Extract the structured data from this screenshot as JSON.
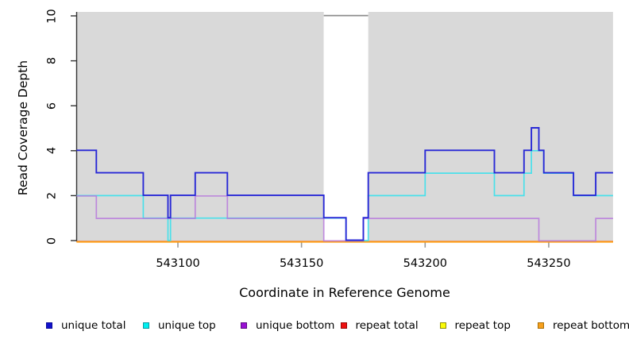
{
  "chart_data": {
    "type": "line",
    "subtype": "step-coverage",
    "title": "",
    "x_axis": {
      "label": "Coordinate in Reference Genome",
      "range": [
        543059,
        543276
      ],
      "ticks": [
        {
          "coord": 543100,
          "label": "543100"
        },
        {
          "coord": 543150,
          "label": "543150"
        },
        {
          "coord": 543200,
          "label": "543200"
        },
        {
          "coord": 543250,
          "label": "543250"
        }
      ]
    },
    "y_axis": {
      "label": "Read Coverage Depth",
      "range": [
        0,
        10
      ],
      "ticks": [
        0,
        2,
        4,
        6,
        8,
        10
      ]
    },
    "background_regions": [
      {
        "name": "covered-left",
        "from": 543059,
        "to": 543159,
        "color": "#d9d9d9"
      },
      {
        "name": "uncovered-gap",
        "from": 543159,
        "to": 543177,
        "color": "#ffffff",
        "top_border": "#8c8c8c"
      },
      {
        "name": "covered-right",
        "from": 543177,
        "to": 543276,
        "color": "#d9d9d9"
      }
    ],
    "x_end": 543276,
    "series": [
      {
        "key": "repeat-top",
        "name": "repeat top",
        "color": "#f2e522",
        "offset": 1.4,
        "width": 1.6,
        "steps": [
          [
            543059,
            0
          ]
        ]
      },
      {
        "key": "repeat-total",
        "name": "repeat total",
        "color": "#dd3333",
        "offset": 1.2,
        "width": 1.6,
        "steps": [
          [
            543059,
            0
          ]
        ]
      },
      {
        "key": "repeat-bottom",
        "name": "repeat bottom",
        "color": "#ff9e10",
        "offset": 1.6,
        "width": 2,
        "steps": [
          [
            543059,
            0
          ]
        ]
      },
      {
        "key": "unique-top",
        "name": "unique top",
        "color": "#4ae0ea",
        "offset": 0,
        "width": 1.7,
        "steps": [
          [
            543059,
            2
          ],
          [
            543086,
            1
          ],
          [
            543096,
            0
          ],
          [
            543097,
            1
          ],
          [
            543168,
            0
          ],
          [
            543177,
            2
          ],
          [
            543200,
            3
          ],
          [
            543228,
            2
          ],
          [
            543240,
            3
          ],
          [
            543243,
            4
          ],
          [
            543248,
            3
          ],
          [
            543260,
            2
          ]
        ]
      },
      {
        "key": "unique-bottom",
        "name": "unique bottom",
        "color": "#b574dc",
        "offset": 0.4,
        "width": 1.7,
        "opacity": 0.8,
        "steps": [
          [
            543059,
            2
          ],
          [
            543067,
            1
          ],
          [
            543107,
            2
          ],
          [
            543120,
            1
          ],
          [
            543159,
            0
          ],
          [
            543175,
            1
          ],
          [
            543246,
            0
          ],
          [
            543269,
            1
          ]
        ]
      },
      {
        "key": "unique-total",
        "name": "unique total",
        "color": "#2929d6",
        "offset": -0.5,
        "width": 1.9,
        "steps": [
          [
            543059,
            4
          ],
          [
            543067,
            3
          ],
          [
            543086,
            2
          ],
          [
            543096,
            1
          ],
          [
            543097,
            2
          ],
          [
            543107,
            3
          ],
          [
            543120,
            2
          ],
          [
            543159,
            1
          ],
          [
            543168,
            0
          ],
          [
            543175,
            1
          ],
          [
            543177,
            3
          ],
          [
            543200,
            4
          ],
          [
            543228,
            3
          ],
          [
            543240,
            4
          ],
          [
            543243,
            5
          ],
          [
            543246,
            4
          ],
          [
            543248,
            3
          ],
          [
            543260,
            2
          ],
          [
            543269,
            3
          ]
        ]
      }
    ],
    "legend": [
      {
        "key": "unique-total",
        "label": "unique total",
        "fill": "#1212cc",
        "border": "#0a0a99"
      },
      {
        "key": "unique-top",
        "label": "unique top",
        "fill": "#00f0f0",
        "border": "#0b98a0"
      },
      {
        "key": "unique-bottom",
        "label": "unique bottom",
        "fill": "#9911d4",
        "border": "#5f0b85"
      },
      {
        "key": "repeat-total",
        "label": "repeat total",
        "fill": "#ee1111",
        "border": "#990808"
      },
      {
        "key": "repeat-top",
        "label": "repeat top",
        "fill": "#fbfb07",
        "border": "#8f8f06"
      },
      {
        "key": "repeat-bottom",
        "label": "repeat bottom",
        "fill": "#f7a01d",
        "border": "#a96e05"
      }
    ]
  }
}
